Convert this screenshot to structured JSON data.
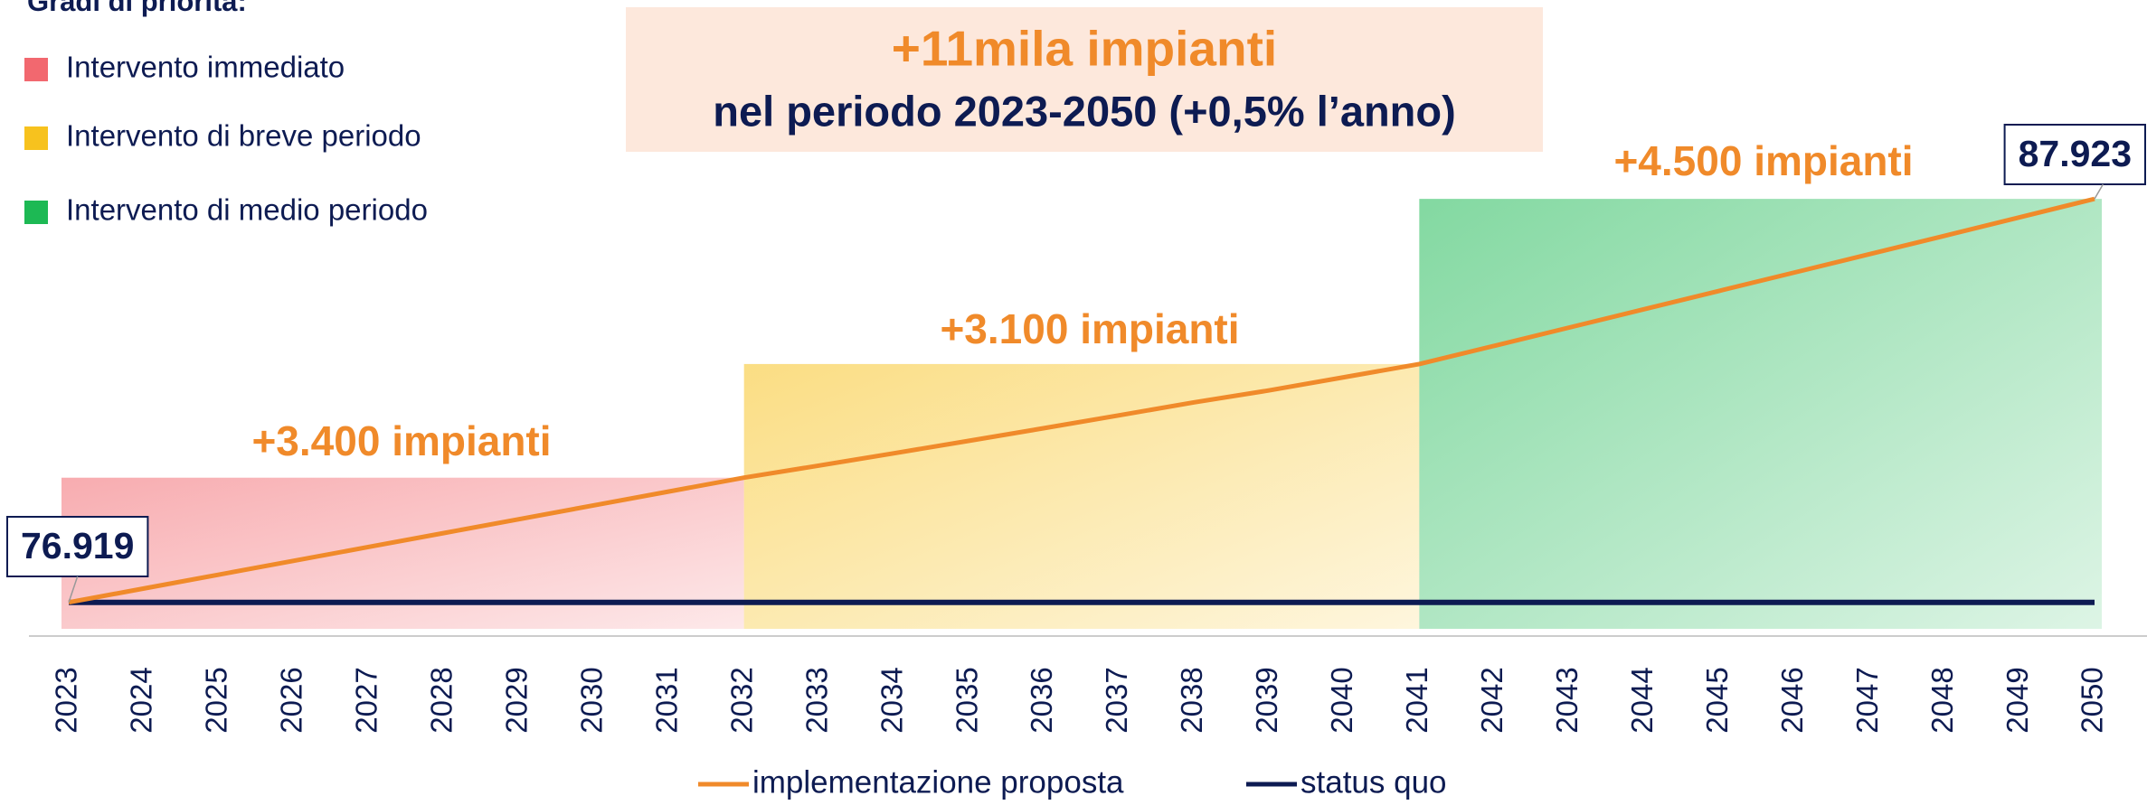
{
  "chart_data": {
    "type": "line",
    "legend_title": "Gradi di priorità:",
    "priority_legend": [
      {
        "name": "Intervento immediato",
        "color": "#f2686f"
      },
      {
        "name": "Intervento di breve periodo",
        "color": "#f7c21e"
      },
      {
        "name": "Intervento di medio periodo",
        "color": "#1db954"
      }
    ],
    "headline": "+11mila impianti",
    "subheadline": "nel periodo 2023-2050 (+0,5% l’anno)",
    "annotations": [
      "+3.400 impianti",
      "+3.100 impianti",
      "+4.500 impianti"
    ],
    "categories": [
      "2023",
      "2024",
      "2025",
      "2026",
      "2027",
      "2028",
      "2029",
      "2030",
      "2031",
      "2032",
      "2033",
      "2034",
      "2035",
      "2036",
      "2037",
      "2038",
      "2039",
      "2040",
      "2041",
      "2042",
      "2043",
      "2044",
      "2045",
      "2046",
      "2047",
      "2048",
      "2049",
      "2050"
    ],
    "series": [
      {
        "name": "implementazione proposta",
        "color": "#f08a2a",
        "values": [
          76919,
          77297,
          77675,
          78053,
          78431,
          78809,
          79187,
          79565,
          79943,
          80319,
          80650,
          80985,
          81325,
          81670,
          82020,
          82375,
          82700,
          83060,
          83419,
          83915,
          84415,
          84915,
          85415,
          85915,
          86415,
          86915,
          87420,
          87923
        ],
        "value_labels": [
          "76.919",
          null,
          null,
          null,
          null,
          null,
          null,
          null,
          null,
          null,
          null,
          null,
          null,
          null,
          null,
          null,
          null,
          null,
          null,
          null,
          null,
          null,
          null,
          null,
          null,
          null,
          null,
          "87.923"
        ]
      },
      {
        "name": "status quo",
        "color": "#0d1b52",
        "values": [
          76919,
          76919,
          76919,
          76919,
          76919,
          76919,
          76919,
          76919,
          76919,
          76919,
          76919,
          76919,
          76919,
          76919,
          76919,
          76919,
          76919,
          76919,
          76919,
          76919,
          76919,
          76919,
          76919,
          76919,
          76919,
          76919,
          76919,
          76919
        ]
      }
    ],
    "ylim": [
      76000,
      88000
    ]
  }
}
